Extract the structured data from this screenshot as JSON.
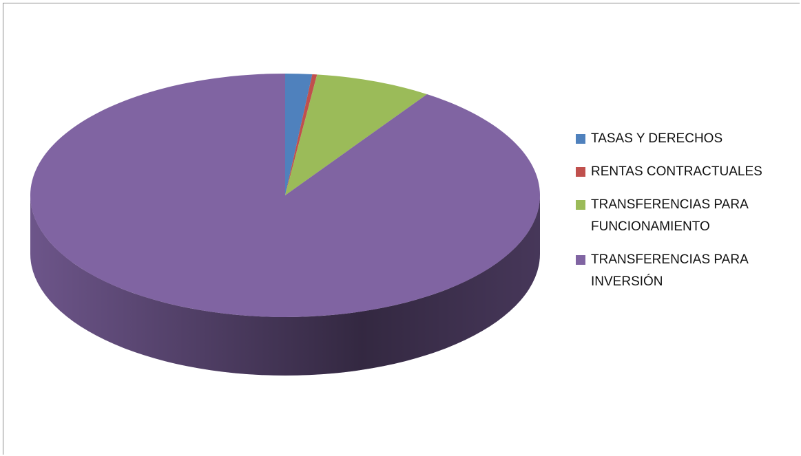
{
  "chart_data": {
    "type": "pie",
    "categories": [
      "TASAS Y DERECHOS",
      "RENTAS CONTRACTUALES",
      "TRANSFERENCIAS PARA FUNCIONAMIENTO",
      "TRANSFERENCIAS PARA INVERSIÓN"
    ],
    "values": [
      1.7,
      0.3,
      7.4,
      90.6
    ],
    "colors": [
      "#4f81bd",
      "#c0504d",
      "#9bbb59",
      "#8064a2"
    ],
    "legend": "right",
    "three_d": true
  }
}
